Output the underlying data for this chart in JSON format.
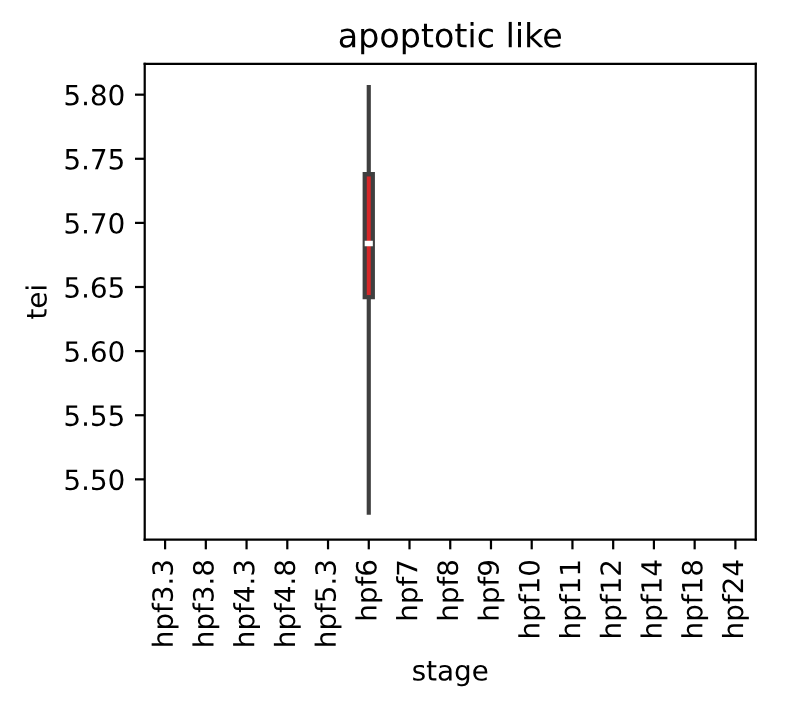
{
  "chart_data": {
    "type": "box",
    "title": "apoptotic like",
    "xlabel": "stage",
    "ylabel": "tei",
    "categories": [
      "hpf3.3",
      "hpf3.8",
      "hpf4.3",
      "hpf4.8",
      "hpf5.3",
      "hpf6",
      "hpf7",
      "hpf8",
      "hpf9",
      "hpf10",
      "hpf11",
      "hpf12",
      "hpf14",
      "hpf18",
      "hpf24"
    ],
    "series": [
      {
        "color": "#d62728",
        "boxes": [
          null,
          null,
          null,
          null,
          null,
          {
            "low": 5.474,
            "q1": 5.642,
            "median": 5.684,
            "q3": 5.738,
            "high": 5.806
          },
          null,
          null,
          null,
          null,
          null,
          null,
          null,
          null,
          null
        ]
      }
    ],
    "ylim": [
      5.453,
      5.824
    ],
    "yticks": [
      {
        "value": 5.5,
        "label": "5.50"
      },
      5.55,
      {
        "value": 5.6,
        "label": "5.60"
      },
      5.65,
      {
        "value": 5.7,
        "label": "5.70"
      },
      5.75,
      {
        "value": 5.8,
        "label": "5.80"
      }
    ],
    "grid": false,
    "legend": false
  }
}
